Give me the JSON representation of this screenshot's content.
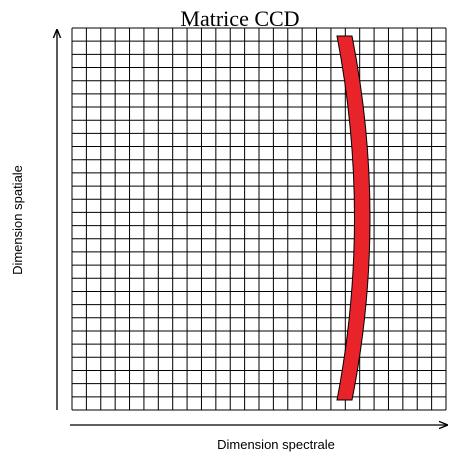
{
  "title": "Matrice CCD",
  "axes": {
    "y_label": "Dimension spatiale",
    "x_label": "Dimension spectrale"
  }
}
